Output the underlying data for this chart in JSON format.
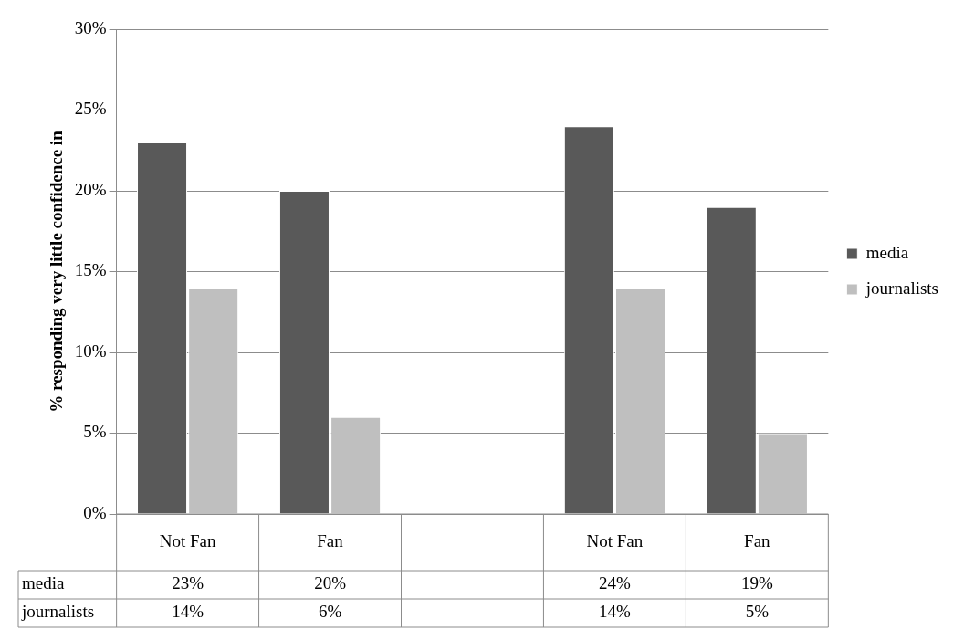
{
  "chart_data": {
    "type": "bar",
    "ylabel": "% responding very little confidence in",
    "categories": [
      "Not Fan",
      "Fan",
      null,
      "Not Fan",
      "Fan"
    ],
    "series": [
      {
        "name": "media",
        "color": "#595959",
        "values": [
          23,
          20,
          null,
          24,
          19
        ],
        "value_labels": [
          "23%",
          "20%",
          null,
          "24%",
          "19%"
        ]
      },
      {
        "name": "journalists",
        "color": "#bfbfbf",
        "values": [
          14,
          6,
          null,
          14,
          5
        ],
        "value_labels": [
          "14%",
          "6%",
          null,
          "14%",
          "5%"
        ]
      }
    ],
    "ylim": [
      0,
      30
    ],
    "yticks": [
      {
        "value": 0,
        "label": "0%"
      },
      {
        "value": 5,
        "label": "5%"
      },
      {
        "value": 10,
        "label": "10%"
      },
      {
        "value": 15,
        "label": "15%"
      },
      {
        "value": 20,
        "label": "20%"
      },
      {
        "value": 25,
        "label": "25%"
      },
      {
        "value": 30,
        "label": "30%"
      }
    ],
    "grid": "y",
    "legend": "right"
  }
}
